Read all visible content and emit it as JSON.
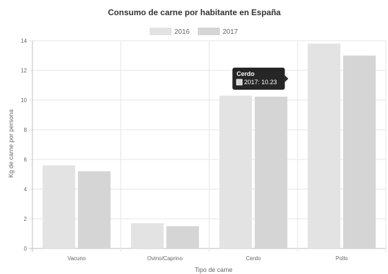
{
  "chart_data": {
    "type": "bar",
    "title": "Consumo de carne por habitante en España",
    "xlabel": "Tipo de carne",
    "ylabel": "Kg de carne por persona",
    "categories": [
      "Vacuno",
      "Ovino/Caprino",
      "Cerdo",
      "Pollo"
    ],
    "series": [
      {
        "name": "2016",
        "values": [
          5.6,
          1.7,
          10.3,
          13.8
        ],
        "color": "#e3e3e3"
      },
      {
        "name": "2017",
        "values": [
          5.2,
          1.5,
          10.23,
          13.0
        ],
        "color": "#d5d5d5"
      }
    ],
    "ylim": [
      0,
      14
    ],
    "yticks": [
      "0",
      "2",
      "4",
      "6",
      "8",
      "10",
      "12",
      "14"
    ],
    "grid": true,
    "legend_position": "top-center",
    "tooltip": {
      "title": "Cerdo",
      "body": "2017: 10.23",
      "category_index": 2,
      "series_index": 1
    }
  }
}
